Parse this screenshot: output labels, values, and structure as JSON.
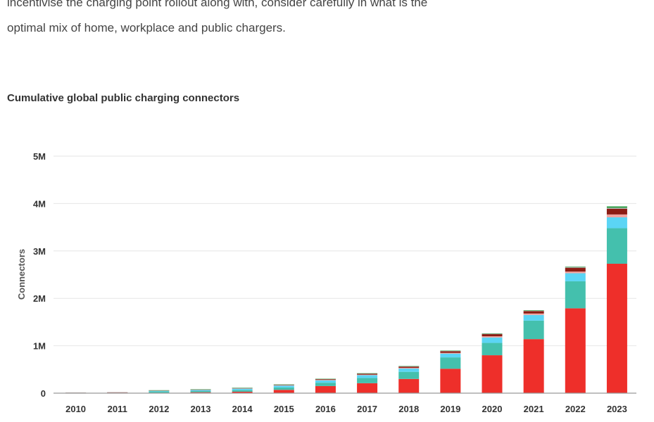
{
  "intro": {
    "line1": "incentivise the charging point rollout along with, consider carefully in what is the",
    "line2": "optimal mix of home, workplace and public chargers."
  },
  "chart_data": {
    "type": "bar",
    "stacked": true,
    "title": "Cumulative global public charging connectors",
    "xlabel": "",
    "ylabel": "Connectors",
    "ylim": [
      0,
      5000000
    ],
    "yticks": [
      0,
      1000000,
      2000000,
      3000000,
      4000000,
      5000000
    ],
    "ytick_labels": [
      "0",
      "1M",
      "2M",
      "3M",
      "4M",
      "5M"
    ],
    "grid": true,
    "categories": [
      "2010",
      "2011",
      "2012",
      "2013",
      "2014",
      "2015",
      "2016",
      "2017",
      "2018",
      "2019",
      "2020",
      "2021",
      "2022",
      "2023"
    ],
    "series": [
      {
        "color": "#ee2f2a",
        "values": [
          2000,
          4000,
          9000,
          20000,
          30000,
          70000,
          150000,
          210000,
          300000,
          515000,
          800000,
          1140000,
          1790000,
          2730000
        ]
      },
      {
        "color": "#44c0ad",
        "values": [
          3000,
          5000,
          26000,
          25000,
          35000,
          50000,
          70000,
          110000,
          150000,
          240000,
          260000,
          390000,
          570000,
          750000
        ]
      },
      {
        "color": "#5bd5f5",
        "values": [
          2000,
          4000,
          15000,
          22000,
          30000,
          40000,
          50000,
          60000,
          70000,
          80000,
          115000,
          120000,
          170000,
          230000
        ]
      },
      {
        "color": "#f0a3a0",
        "values": [
          1000,
          2000,
          4000,
          5000,
          6000,
          8000,
          10000,
          11000,
          15000,
          15000,
          25000,
          30000,
          35000,
          60000
        ]
      },
      {
        "color": "#8c1c13",
        "values": [
          4000,
          3000,
          5000,
          6000,
          8000,
          10000,
          15000,
          20000,
          25000,
          35000,
          45000,
          50000,
          80000,
          120000
        ]
      },
      {
        "color": "#b0b0b0",
        "values": [
          1000,
          1000,
          2000,
          2000,
          3000,
          4000,
          5000,
          6000,
          7000,
          8000,
          10000,
          10000,
          15000,
          20000
        ]
      },
      {
        "color": "#2e9e45",
        "values": [
          0,
          0,
          1000,
          1000,
          2000,
          2000,
          3000,
          3000,
          5000,
          5000,
          6000,
          10000,
          10000,
          30000
        ]
      }
    ]
  }
}
